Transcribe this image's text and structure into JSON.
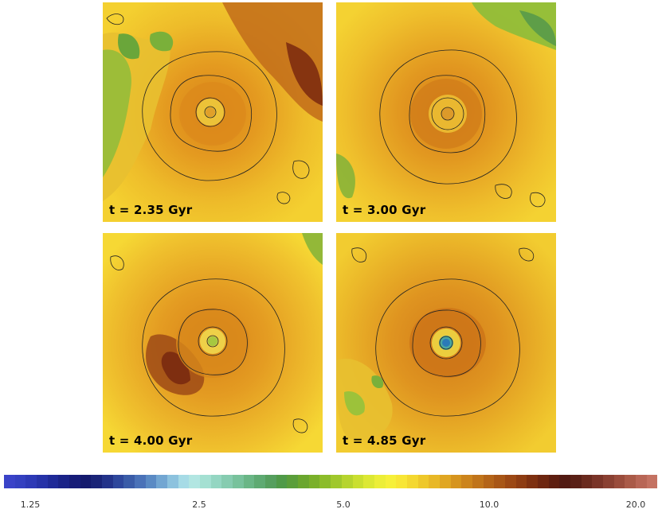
{
  "panels": [
    {
      "label": "t = 2.35 Gyr"
    },
    {
      "label": "t = 3.00 Gyr"
    },
    {
      "label": "t = 4.00 Gyr"
    },
    {
      "label": "t = 4.85 Gyr"
    }
  ],
  "colorbar": {
    "ticks": [
      "1.25",
      "2.5",
      "5.0",
      "10.0",
      "20.0"
    ],
    "colors": [
      "#3a43c8",
      "#3440c0",
      "#2d39b6",
      "#2632a8",
      "#1f2a98",
      "#1a2388",
      "#161c78",
      "#141a6e",
      "#1a2478",
      "#23338a",
      "#2e479c",
      "#3a5ca8",
      "#4a72b8",
      "#5a8ac4",
      "#72a6d2",
      "#8cc2de",
      "#a6dbe6",
      "#b2e6e2",
      "#a4e0d2",
      "#94d6c2",
      "#86ccb0",
      "#78c29c",
      "#6ab686",
      "#5eaa72",
      "#559f5e",
      "#4f9a48",
      "#5a9e3a",
      "#6aa62e",
      "#7ab02a",
      "#8cbc2a",
      "#a0c82c",
      "#b6d42e",
      "#cadf30",
      "#dce834",
      "#ecee38",
      "#f6f03a",
      "#f8e636",
      "#f4d830",
      "#eec82a",
      "#e8b826",
      "#e0a622",
      "#d6941e",
      "#cc841c",
      "#c0741a",
      "#b46418",
      "#a85616",
      "#9c4814",
      "#8e3c12",
      "#7e3010",
      "#6e2610",
      "#5e1e10",
      "#521a12",
      "#5a2016",
      "#6a2a1e",
      "#7a3428",
      "#8a4032",
      "#9a4c3c",
      "#aa5a48",
      "#b86656",
      "#c47262"
    ]
  },
  "colors": {
    "base_yellow": "#f0c82a",
    "orange": "#e2961e",
    "dark_red": "#8a2a10",
    "green": "#6aa63a",
    "core_blue": "#2a9ac8"
  }
}
